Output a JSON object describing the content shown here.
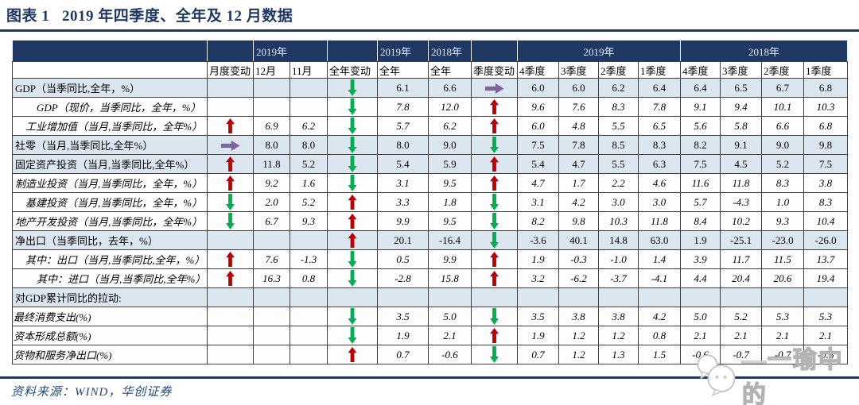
{
  "title": "图表 1   2019 年四季度、全年及 12 月数据",
  "source": "资料来源：WIND，华创证券",
  "watermark": "—一瑜中的",
  "colors": {
    "navy": "#1F3864",
    "row_shade": "#DCE6F1",
    "arrow_up_red": "#C00000",
    "arrow_down_green": "#00B050",
    "arrow_flat_purple": "#8064A2",
    "source_blue": "#1F497D"
  },
  "table": {
    "groups": {
      "monthly": "2019年",
      "annual_2019": "2019年",
      "annual_2018": "2018年",
      "quarters_2019": "2019年",
      "quarters_2018": "2018年"
    },
    "columns": [
      "月度变动",
      "12月",
      "11月",
      "全年变动",
      "全年",
      "全年",
      "季度变动",
      "4季度",
      "3季度",
      "2季度",
      "1季度",
      "4季度",
      "3季度",
      "2季度",
      "1季度"
    ],
    "rows": [
      {
        "label": "GDP（当季同比,全年，%）",
        "indent": 0,
        "shaded": true,
        "monthly_change": "",
        "dec": "",
        "nov": "",
        "annual_change": "down",
        "fy_2019": "6.1",
        "fy_2018": "6.6",
        "quarterly_change": "right",
        "q_2019": [
          "6.0",
          "6.0",
          "6.2",
          "6.4"
        ],
        "q_2018": [
          "6.4",
          "6.5",
          "6.7",
          "6.8"
        ]
      },
      {
        "label": "GDP（现价，当季同比，全年，%）",
        "indent": 2,
        "shaded": false,
        "monthly_change": "",
        "dec": "",
        "nov": "",
        "annual_change": "down",
        "fy_2019": "7.8",
        "fy_2018": "12.0",
        "quarterly_change": "up",
        "q_2019": [
          "9.6",
          "7.6",
          "8.3",
          "7.8"
        ],
        "q_2018": [
          "9.1",
          "9.4",
          "10.1",
          "10.3"
        ]
      },
      {
        "label": "工业增加值（当月,当季同比，全年%）",
        "indent": 1,
        "shaded": false,
        "monthly_change": "up",
        "dec": "6.9",
        "nov": "6.2",
        "annual_change": "down",
        "fy_2019": "5.7",
        "fy_2018": "6.2",
        "quarterly_change": "up",
        "q_2019": [
          "6.0",
          "4.8",
          "5.5",
          "6.5"
        ],
        "q_2018": [
          "5.6",
          "5.8",
          "6.6",
          "6.8"
        ]
      },
      {
        "label": "社零（当月,当季同比,全年%）",
        "indent": 0,
        "shaded": true,
        "monthly_change": "right",
        "dec": "8.0",
        "nov": "8.0",
        "annual_change": "down",
        "fy_2019": "8.0",
        "fy_2018": "9.0",
        "quarterly_change": "down",
        "q_2019": [
          "7.5",
          "7.8",
          "8.5",
          "8.3"
        ],
        "q_2018": [
          "8.2",
          "9.1",
          "9.0",
          "9.8"
        ]
      },
      {
        "label": "固定资产投资（当月,当季同比,全年%）",
        "indent": 0,
        "shaded": true,
        "monthly_change": "up",
        "dec": "11.8",
        "nov": "5.2",
        "annual_change": "down",
        "fy_2019": "5.4",
        "fy_2018": "5.9",
        "quarterly_change": "up",
        "q_2019": [
          "5.4",
          "4.7",
          "5.5",
          "6.3"
        ],
        "q_2018": [
          "7.5",
          "4.5",
          "5.2",
          "7.5"
        ]
      },
      {
        "label": "制造业投资（当月,当季同比，全年，%）",
        "indent": 0,
        "shaded": false,
        "monthly_change": "up",
        "dec": "9.2",
        "nov": "1.6",
        "annual_change": "down",
        "fy_2019": "3.1",
        "fy_2018": "9.5",
        "quarterly_change": "up",
        "q_2019": [
          "4.7",
          "1.7",
          "2.2",
          "4.6"
        ],
        "q_2018": [
          "11.6",
          "11.8",
          "8.3",
          "3.8"
        ]
      },
      {
        "label": "基建投资（当月,当季同比，全年，%）",
        "indent": 1,
        "shaded": false,
        "monthly_change": "down",
        "dec": "2.0",
        "nov": "5.2",
        "annual_change": "up",
        "fy_2019": "3.3",
        "fy_2018": "1.8",
        "quarterly_change": "down",
        "q_2019": [
          "3.1",
          "4.2",
          "3.0",
          "3.0"
        ],
        "q_2018": [
          "5.7",
          "-4.3",
          "1.0",
          "8.3"
        ]
      },
      {
        "label": "地产开发投资（当月,当季同比，全年%）",
        "indent": 0,
        "shaded": false,
        "monthly_change": "down",
        "dec": "6.7",
        "nov": "9.3",
        "annual_change": "up",
        "fy_2019": "9.9",
        "fy_2018": "9.5",
        "quarterly_change": "down",
        "q_2019": [
          "8.2",
          "9.8",
          "10.3",
          "11.8"
        ],
        "q_2018": [
          "8.4",
          "10.2",
          "9.3",
          "10.4"
        ]
      },
      {
        "label": "净出口（当季同比，去年，%）",
        "indent": 0,
        "shaded": true,
        "monthly_change": "",
        "dec": "",
        "nov": "",
        "annual_change": "up",
        "fy_2019": "20.1",
        "fy_2018": "-16.4",
        "quarterly_change": "down",
        "q_2019": [
          "-3.6",
          "40.1",
          "14.8",
          "63.0"
        ],
        "q_2018": [
          "1.9",
          "-25.1",
          "-23.0",
          "-26.0"
        ]
      },
      {
        "label": "其中：出口（当月,当季同比,全年，%）",
        "indent": 1,
        "shaded": false,
        "monthly_change": "up",
        "dec": "7.6",
        "nov": "-1.3",
        "annual_change": "down",
        "fy_2019": "0.5",
        "fy_2018": "9.9",
        "quarterly_change": "up",
        "q_2019": [
          "1.9",
          "-0.3",
          "-1.0",
          "1.4"
        ],
        "q_2018": [
          "3.9",
          "11.7",
          "11.5",
          "13.7"
        ]
      },
      {
        "label": "其中：进口（当月,当季同比,全年%）",
        "indent": 2,
        "shaded": false,
        "monthly_change": "up",
        "dec": "16.3",
        "nov": "0.8",
        "annual_change": "down",
        "fy_2019": "-2.8",
        "fy_2018": "15.8",
        "quarterly_change": "up",
        "q_2019": [
          "3.2",
          "-6.2",
          "-3.7",
          "-4.1"
        ],
        "q_2018": [
          "4.4",
          "20.4",
          "20.6",
          "19.4"
        ]
      },
      {
        "label": "对GDP累计同比的拉动:",
        "indent": 0,
        "shaded": true,
        "monthly_change": "",
        "dec": "",
        "nov": "",
        "annual_change": "",
        "fy_2019": "",
        "fy_2018": "",
        "quarterly_change": "",
        "q_2019": [
          "",
          "",
          "",
          ""
        ],
        "q_2018": [
          "",
          "",
          "",
          ""
        ]
      },
      {
        "label": "最终消费支出(%)",
        "indent": "right",
        "shaded": false,
        "monthly_change": "",
        "dec": "",
        "nov": "",
        "annual_change": "down",
        "fy_2019": "3.5",
        "fy_2018": "5.0",
        "quarterly_change": "down",
        "q_2019": [
          "3.5",
          "3.8",
          "3.8",
          "4.2"
        ],
        "q_2018": [
          "5.0",
          "5.2",
          "5.3",
          "5.3"
        ]
      },
      {
        "label": "资本形成总额(%)",
        "indent": "right",
        "shaded": false,
        "monthly_change": "",
        "dec": "",
        "nov": "",
        "annual_change": "down",
        "fy_2019": "1.9",
        "fy_2018": "2.1",
        "quarterly_change": "up",
        "q_2019": [
          "1.9",
          "1.2",
          "1.2",
          "0.8"
        ],
        "q_2018": [
          "2.1",
          "2.1",
          "2.1",
          "2.1"
        ]
      },
      {
        "label": "货物和服务净出口(%)",
        "indent": "right",
        "shaded": false,
        "monthly_change": "",
        "dec": "",
        "nov": "",
        "annual_change": "up",
        "fy_2019": "0.7",
        "fy_2018": "-0.6",
        "quarterly_change": "down",
        "q_2019": [
          "0.7",
          "1.2",
          "1.3",
          "1.5"
        ],
        "q_2018": [
          "-0.6",
          "-0.7",
          "-0.7",
          "-0.6"
        ]
      }
    ]
  }
}
